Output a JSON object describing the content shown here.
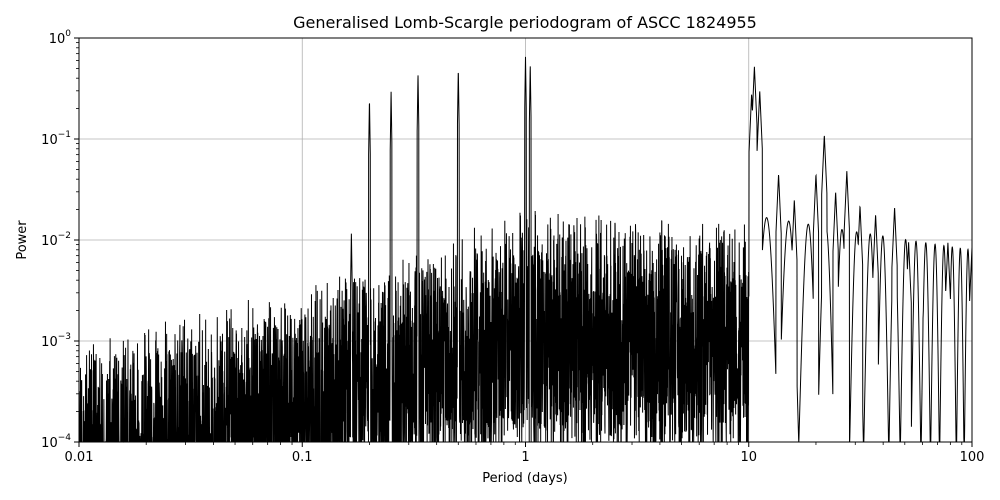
{
  "chart_data": {
    "type": "line",
    "title": "Generalised Lomb-Scargle periodogram of ASCC 1824955",
    "xlabel": "Period (days)",
    "ylabel": "Power",
    "xscale": "log",
    "yscale": "log",
    "xlim": [
      0.01,
      100
    ],
    "ylim": [
      0.0001,
      1
    ],
    "grid": true,
    "line_color": "#000000",
    "grid_color": "#b0b0b0",
    "x_ticks": [
      {
        "value": 0.01,
        "label": "0.01"
      },
      {
        "value": 0.1,
        "label": "0.1"
      },
      {
        "value": 1,
        "label": "1"
      },
      {
        "value": 10,
        "label": "10"
      },
      {
        "value": 100,
        "label": "100"
      }
    ],
    "y_ticks": [
      {
        "value": 0.0001,
        "base": "10",
        "exp": "−4"
      },
      {
        "value": 0.001,
        "base": "10",
        "exp": "−3"
      },
      {
        "value": 0.01,
        "base": "10",
        "exp": "−2"
      },
      {
        "value": 0.1,
        "base": "10",
        "exp": "−1"
      },
      {
        "value": 1,
        "base": "10",
        "exp": "0"
      }
    ],
    "series": [
      {
        "values_description_free": true,
        "peaks": [
          {
            "x": 0.166,
            "y": 0.012
          },
          {
            "x": 0.2,
            "y": 0.25
          },
          {
            "x": 0.25,
            "y": 0.3
          },
          {
            "x": 0.33,
            "y": 0.45
          },
          {
            "x": 0.5,
            "y": 0.5
          },
          {
            "x": 1.0,
            "y": 0.65
          },
          {
            "x": 1.05,
            "y": 0.55
          },
          {
            "x": 10.3,
            "y": 0.28
          },
          {
            "x": 10.6,
            "y": 0.52
          },
          {
            "x": 11.2,
            "y": 0.3
          },
          {
            "x": 13.6,
            "y": 0.045
          },
          {
            "x": 16.0,
            "y": 0.025
          },
          {
            "x": 20.0,
            "y": 0.045
          },
          {
            "x": 21.8,
            "y": 0.11
          },
          {
            "x": 24.5,
            "y": 0.03
          },
          {
            "x": 27.5,
            "y": 0.048
          },
          {
            "x": 31.5,
            "y": 0.022
          },
          {
            "x": 37.0,
            "y": 0.018
          },
          {
            "x": 45.0,
            "y": 0.021
          },
          {
            "x": 52.0,
            "y": 0.0095
          },
          {
            "x": 62.0,
            "y": 0.0065
          },
          {
            "x": 78.0,
            "y": 0.0095
          },
          {
            "x": 100.0,
            "y": 0.0085
          }
        ]
      }
    ]
  }
}
